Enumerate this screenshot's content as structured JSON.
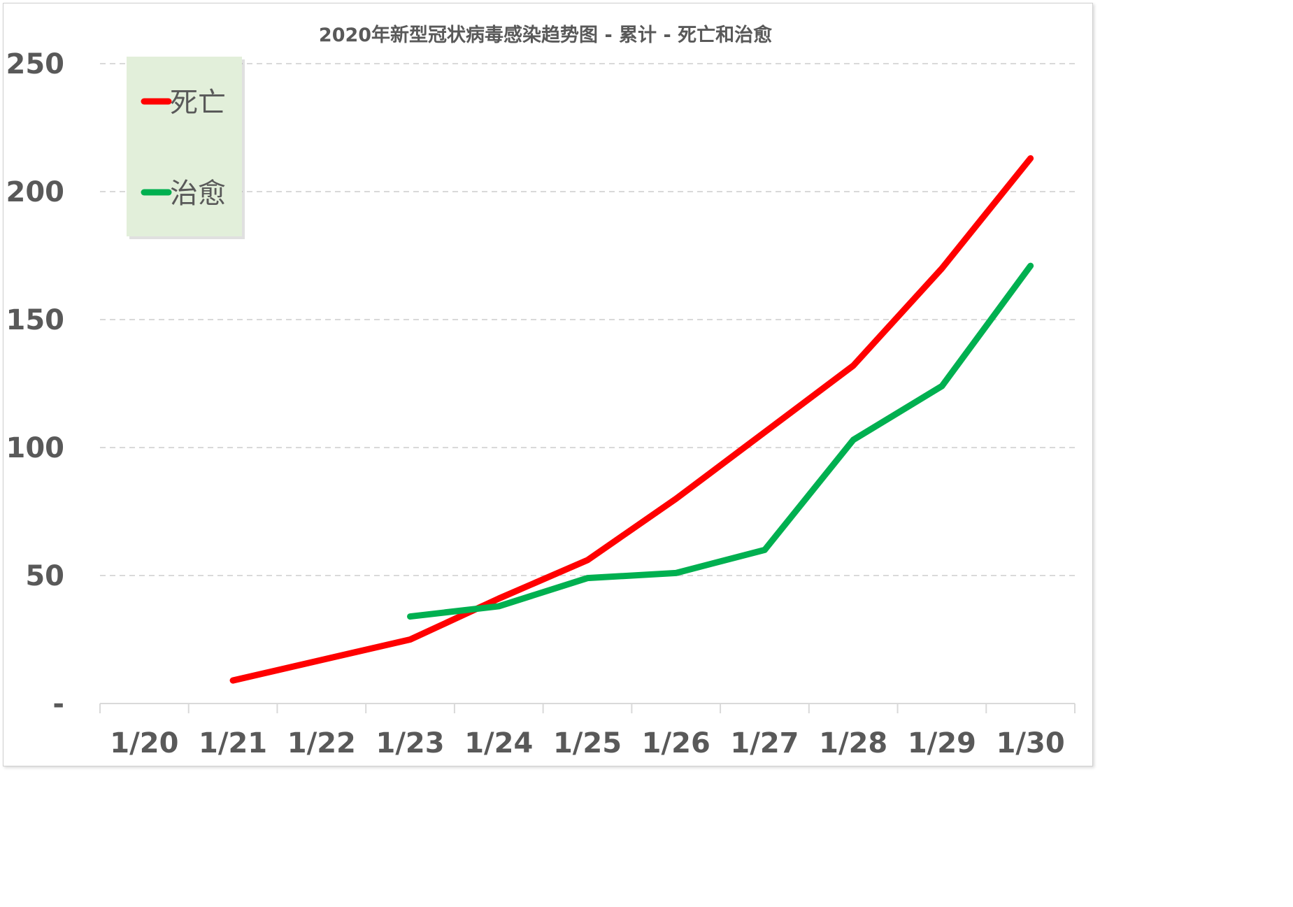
{
  "chart_data": {
    "type": "line",
    "title": "2020年新型冠状病毒感染趋势图 - 累计 - 死亡和治愈",
    "xlabel": "",
    "ylabel": "",
    "categories": [
      "1/20",
      "1/21",
      "1/22",
      "1/23",
      "1/24",
      "1/25",
      "1/26",
      "1/27",
      "1/28",
      "1/29",
      "1/30"
    ],
    "ylim": [
      0,
      250
    ],
    "yticks": [
      0,
      50,
      100,
      150,
      200,
      250
    ],
    "ytick_labels": [
      "-",
      "50",
      "100",
      "150",
      "200",
      "250"
    ],
    "grid": "horizontal dashed",
    "legend_position": "top-left",
    "series": [
      {
        "name": "死亡",
        "color": "#ff0000",
        "values": [
          null,
          9,
          17,
          25,
          41,
          56,
          80,
          106,
          132,
          170,
          213
        ]
      },
      {
        "name": "治愈",
        "color": "#00b050",
        "values": [
          null,
          null,
          null,
          34,
          38,
          49,
          51,
          60,
          103,
          124,
          171
        ]
      }
    ]
  }
}
